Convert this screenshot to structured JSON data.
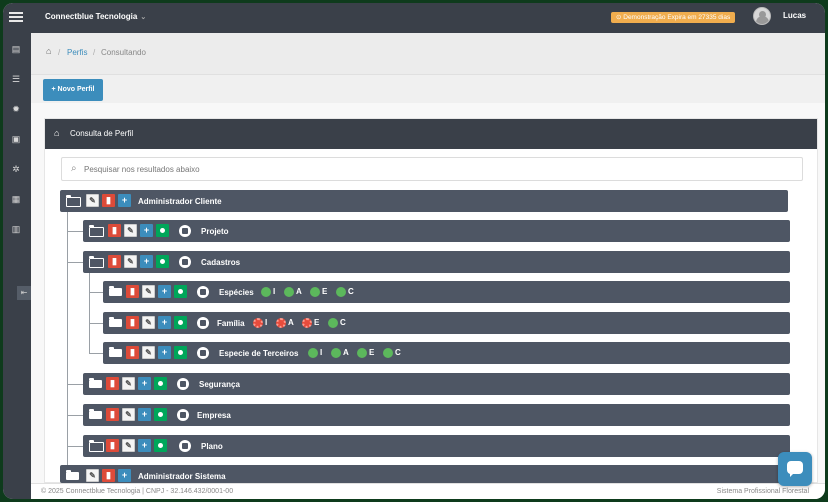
{
  "header": {
    "brand": "Connectblue Tecnologia",
    "brand_caret": "⌄",
    "demo_badge": "⊙ Demonstração Expira em 27335 dias",
    "user": "Lucas"
  },
  "sidebar": {
    "icons": [
      "archive-icon",
      "list-icon",
      "gear-icon",
      "money-icon",
      "gears-icon",
      "report-icon",
      "book-icon"
    ],
    "toggle": "⇤"
  },
  "breadcrumb": {
    "home_icon": "⌂",
    "perfis": "Perfis",
    "current": "Consultando",
    "sep": "/"
  },
  "actions": {
    "new_profile": "+ Novo Perfil"
  },
  "panel": {
    "title": "Consulta de Perfil",
    "search_placeholder": "Pesquisar nos resultados abaixo"
  },
  "tree": {
    "root1": "Administrador Cliente",
    "projeto": "Projeto",
    "cadastros": "Cadastros",
    "especies": "Espécies",
    "familia": "Família",
    "terceiros": "Especie de Terceiros",
    "seguranca": "Segurança",
    "empresa": "Empresa",
    "plano": "Plano",
    "root2": "Administrador Sistema"
  },
  "perms": {
    "especies": [
      {
        "letter": "I",
        "on": true
      },
      {
        "letter": "A",
        "on": true
      },
      {
        "letter": "E",
        "on": true
      },
      {
        "letter": "C",
        "on": true
      }
    ],
    "familia": [
      {
        "letter": "I",
        "on": false
      },
      {
        "letter": "A",
        "on": false
      },
      {
        "letter": "E",
        "on": false
      },
      {
        "letter": "C",
        "on": true
      }
    ],
    "terceiros": [
      {
        "letter": "I",
        "on": true
      },
      {
        "letter": "A",
        "on": true
      },
      {
        "letter": "E",
        "on": true
      },
      {
        "letter": "C",
        "on": true
      }
    ]
  },
  "footer": {
    "left": "© 2025 Connectblue Tecnologia | CNPJ - 32.146.432/0001-00",
    "right": "Sistema Profissional Florestal"
  },
  "colors": {
    "topbar": "#3a4049",
    "row": "#4e5664",
    "primary": "#3c8dbc",
    "danger": "#dd4b39",
    "success": "#00a65a",
    "warning": "#f0ad4e"
  }
}
